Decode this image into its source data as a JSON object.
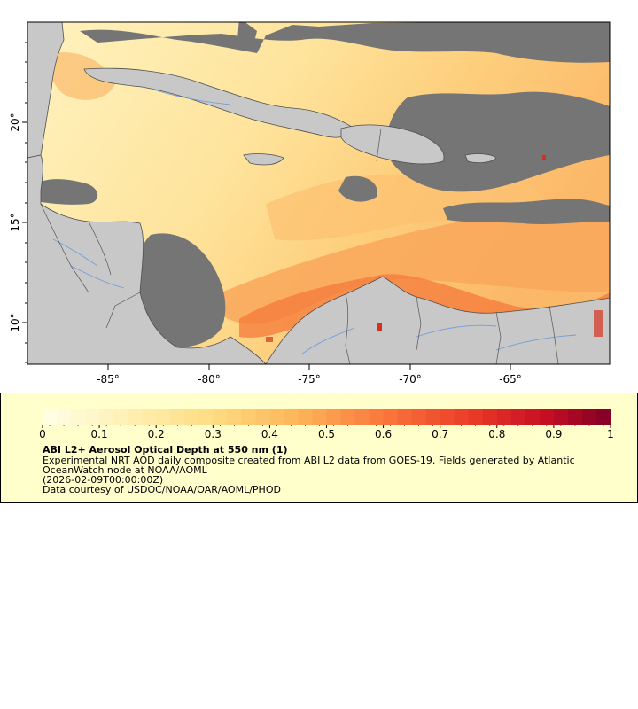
{
  "map": {
    "lon_ticks": [
      "-85°",
      "-80°",
      "-75°",
      "-70°",
      "-65°"
    ],
    "lat_ticks": [
      "20°",
      "15°",
      "10°"
    ],
    "colors": {
      "land": "#c8c8c8",
      "no_data": "#757575",
      "low_aod": "#fff1b8",
      "mid_aod": "#fdca72",
      "high_aod": "#f47a3a",
      "coastline": "#4f4f4f",
      "rivers": "#6f9fd8"
    }
  },
  "legend": {
    "colorbar_ticks": [
      "0",
      "0.1",
      "0.2",
      "0.3",
      "0.4",
      "0.5",
      "0.6",
      "0.7",
      "0.8",
      "0.9",
      "1"
    ],
    "title": "ABI L2+ Aerosol Optical Depth at 550 nm (1)",
    "description": "Experimental NRT AOD daily composite created from ABI L2 data from GOES-19. Fields generated by Atlantic OceanWatch node at NOAA/AOML",
    "timestamp": "(2026-02-09T00:00:00Z)",
    "credit": "Data courtesy of USDOC/NOAA/OAR/AOML/PHOD"
  }
}
